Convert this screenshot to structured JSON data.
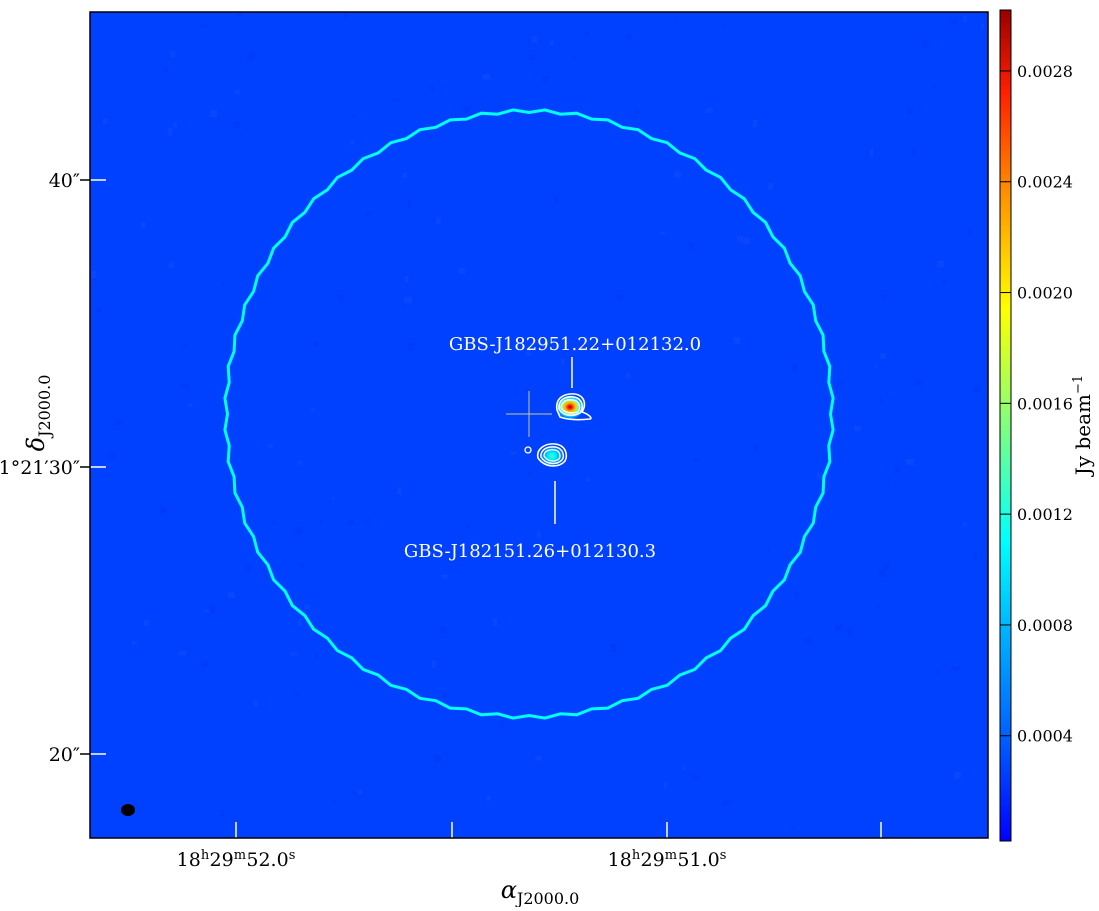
{
  "chart_data": {
    "type": "heatmap",
    "title": "",
    "xlabel": "α_J2000.0",
    "ylabel": "δ_J2000.0",
    "colormap": "jet",
    "background_color": "#0040ff",
    "x_ticks": [
      {
        "label": "18h29m52.0s",
        "h": "18",
        "m": "29",
        "s": "52.0",
        "visible_label": true
      },
      {
        "label": "",
        "visible_label": false
      },
      {
        "label": "18h29m51.0s",
        "h": "18",
        "m": "29",
        "s": "51.0",
        "visible_label": true
      },
      {
        "label": "",
        "visible_label": false
      }
    ],
    "y_ticks": [
      {
        "label": "40″",
        "value": 40
      },
      {
        "label": "1°21′30″",
        "value": 30
      },
      {
        "label": "20″",
        "value": 20
      }
    ],
    "colorbar": {
      "label": "Jy beam",
      "label_exponent": "−1",
      "range": [
        2e-05,
        0.00302
      ],
      "ticks": [
        "0.0004",
        "0.0008",
        "0.0012",
        "0.0016",
        "0.0020",
        "0.0024",
        "0.0028"
      ]
    },
    "primary_beam_circle_color": "#00ffff",
    "sources": [
      {
        "name": "GBS-J182951.22+012132.0",
        "peak": 0.0029,
        "label_position": "above"
      },
      {
        "name": "GBS-J182151.26+012130.3",
        "peak": 0.001,
        "label_position": "below"
      }
    ]
  }
}
